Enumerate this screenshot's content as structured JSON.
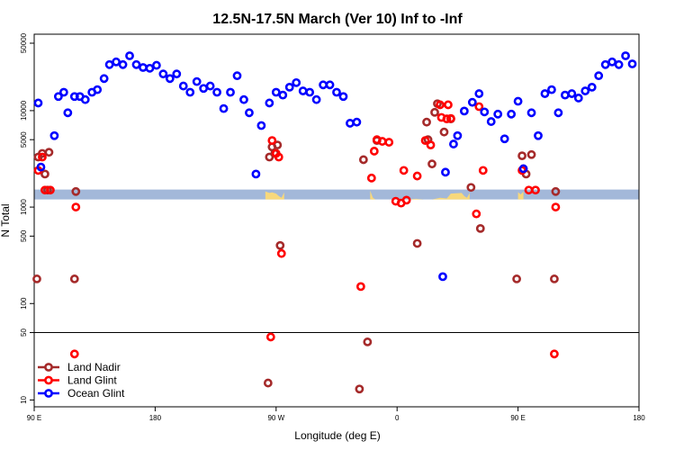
{
  "chart_data": {
    "type": "scatter",
    "title": "12.5N-17.5N March (Ver 10)   Inf to -Inf",
    "xlabel": "Longitude (deg E)",
    "ylabel": "N Total",
    "y_scale": "log",
    "xlim": [
      90,
      540
    ],
    "ylim": [
      8.5,
      62000
    ],
    "x_ticks": [
      {
        "value": 90,
        "label": "90 E"
      },
      {
        "value": 180,
        "label": "180"
      },
      {
        "value": 270,
        "label": "90 W"
      },
      {
        "value": 360,
        "label": "0"
      },
      {
        "value": 450,
        "label": "90 E"
      },
      {
        "value": 540,
        "label": "180"
      }
    ],
    "y_ticks": [
      {
        "value": 10,
        "label": "10"
      },
      {
        "value": 50,
        "label": "50"
      },
      {
        "value": 100,
        "label": "100"
      },
      {
        "value": 500,
        "label": "500"
      },
      {
        "value": 1000,
        "label": "1000"
      },
      {
        "value": 5000,
        "label": "5000"
      },
      {
        "value": 10000,
        "label": "10000"
      },
      {
        "value": 50000,
        "label": "50000"
      }
    ],
    "reference_line": 50,
    "land_band": {
      "y_low": 1200,
      "y_high": 1520,
      "color": "#a3b8d9",
      "land_color": "#f7d87c"
    },
    "land_profile": [
      [
        262,
        1450
      ],
      [
        265,
        1400
      ],
      [
        267,
        1420
      ],
      [
        270,
        1380
      ],
      [
        272,
        1300
      ],
      [
        274,
        1250
      ],
      [
        276,
        1420
      ],
      [
        340,
        1480
      ],
      [
        342,
        1250
      ],
      [
        344,
        1200
      ],
      [
        350,
        1200
      ],
      [
        356,
        1200
      ],
      [
        362,
        1200
      ],
      [
        368,
        1200
      ],
      [
        374,
        1220
      ],
      [
        380,
        1200
      ],
      [
        386,
        1200
      ],
      [
        392,
        1250
      ],
      [
        397,
        1230
      ],
      [
        400,
        1380
      ],
      [
        408,
        1400
      ],
      [
        410,
        1300
      ],
      [
        412,
        1250
      ],
      [
        414,
        1400
      ],
      [
        450,
        1430
      ],
      [
        452,
        1350
      ],
      [
        454,
        1450
      ]
    ],
    "legend_position": "bottom-left",
    "series": [
      {
        "name": "Land Nadir",
        "color": "#a52a2a",
        "points": [
          [
            92,
            180
          ],
          [
            93,
            3300
          ],
          [
            96,
            3600
          ],
          [
            98,
            2200
          ],
          [
            100,
            1500
          ],
          [
            101,
            3700
          ],
          [
            120,
            180
          ],
          [
            121,
            1450
          ],
          [
            264,
            15
          ],
          [
            265,
            3300
          ],
          [
            267,
            4200
          ],
          [
            269,
            3600
          ],
          [
            271,
            4400
          ],
          [
            273,
            400
          ],
          [
            332,
            13
          ],
          [
            335,
            3100
          ],
          [
            338,
            40
          ],
          [
            345,
            4900
          ],
          [
            375,
            420
          ],
          [
            382,
            7600
          ],
          [
            383,
            5000
          ],
          [
            386,
            2800
          ],
          [
            388,
            9600
          ],
          [
            390,
            11800
          ],
          [
            395,
            6000
          ],
          [
            400,
            8200
          ],
          [
            415,
            1600
          ],
          [
            422,
            600
          ],
          [
            449,
            180
          ],
          [
            453,
            3400
          ],
          [
            456,
            2200
          ],
          [
            460,
            3500
          ],
          [
            477,
            180
          ],
          [
            478,
            1450
          ]
        ]
      },
      {
        "name": "Land Glint",
        "color": "#ff0000",
        "points": [
          [
            93,
            2400
          ],
          [
            96,
            3300
          ],
          [
            98,
            1500
          ],
          [
            102,
            1500
          ],
          [
            120,
            30
          ],
          [
            121,
            1000
          ],
          [
            266,
            45
          ],
          [
            267,
            4900
          ],
          [
            270,
            3600
          ],
          [
            272,
            3300
          ],
          [
            274,
            330
          ],
          [
            333,
            150
          ],
          [
            341,
            2000
          ],
          [
            343,
            3800
          ],
          [
            345,
            5000
          ],
          [
            349,
            4800
          ],
          [
            354,
            4700
          ],
          [
            359,
            1150
          ],
          [
            363,
            1100
          ],
          [
            365,
            2400
          ],
          [
            367,
            1180
          ],
          [
            375,
            2100
          ],
          [
            381,
            4900
          ],
          [
            385,
            4400
          ],
          [
            392,
            11500
          ],
          [
            393,
            8500
          ],
          [
            397,
            8200
          ],
          [
            398,
            11500
          ],
          [
            400,
            8300
          ],
          [
            419,
            850
          ],
          [
            421,
            11000
          ],
          [
            424,
            2400
          ],
          [
            453,
            2400
          ],
          [
            458,
            1500
          ],
          [
            463,
            1500
          ],
          [
            477,
            30
          ],
          [
            478,
            1000
          ]
        ]
      },
      {
        "name": "Ocean Glint",
        "color": "#0000ff",
        "points": [
          [
            93,
            12000
          ],
          [
            95,
            2600
          ],
          [
            105,
            5500
          ],
          [
            108,
            14000
          ],
          [
            112,
            15500
          ],
          [
            115,
            9500
          ],
          [
            120,
            14000
          ],
          [
            124,
            14000
          ],
          [
            128,
            13000
          ],
          [
            133,
            15500
          ],
          [
            137,
            16500
          ],
          [
            142,
            21500
          ],
          [
            146,
            30000
          ],
          [
            151,
            32000
          ],
          [
            156,
            30000
          ],
          [
            161,
            37000
          ],
          [
            166,
            30000
          ],
          [
            171,
            28000
          ],
          [
            176,
            27500
          ],
          [
            181,
            29500
          ],
          [
            186,
            24000
          ],
          [
            191,
            21500
          ],
          [
            196,
            24000
          ],
          [
            201,
            18000
          ],
          [
            206,
            15500
          ],
          [
            211,
            20000
          ],
          [
            216,
            17000
          ],
          [
            221,
            18000
          ],
          [
            226,
            15500
          ],
          [
            231,
            10500
          ],
          [
            236,
            15500
          ],
          [
            241,
            23000
          ],
          [
            246,
            13000
          ],
          [
            250,
            9500
          ],
          [
            255,
            2200
          ],
          [
            259,
            7000
          ],
          [
            265,
            12000
          ],
          [
            270,
            15500
          ],
          [
            275,
            14500
          ],
          [
            280,
            17500
          ],
          [
            285,
            19500
          ],
          [
            290,
            16000
          ],
          [
            295,
            15500
          ],
          [
            300,
            13000
          ],
          [
            305,
            18500
          ],
          [
            310,
            18500
          ],
          [
            315,
            15500
          ],
          [
            320,
            14000
          ],
          [
            325,
            7400
          ],
          [
            330,
            7600
          ],
          [
            394,
            190
          ],
          [
            396,
            2300
          ],
          [
            402,
            4500
          ],
          [
            405,
            5500
          ],
          [
            410,
            9900
          ],
          [
            416,
            12200
          ],
          [
            421,
            15000
          ],
          [
            425,
            9700
          ],
          [
            430,
            7700
          ],
          [
            435,
            9200
          ],
          [
            440,
            5100
          ],
          [
            445,
            9200
          ],
          [
            450,
            12500
          ],
          [
            454,
            2500
          ],
          [
            460,
            9500
          ],
          [
            465,
            5500
          ],
          [
            470,
            15000
          ],
          [
            475,
            16500
          ],
          [
            480,
            9500
          ],
          [
            485,
            14500
          ],
          [
            490,
            15000
          ],
          [
            495,
            13500
          ],
          [
            500,
            16000
          ],
          [
            505,
            17500
          ],
          [
            510,
            23000
          ],
          [
            515,
            30000
          ],
          [
            520,
            32000
          ],
          [
            525,
            30000
          ],
          [
            530,
            37000
          ],
          [
            535,
            30500
          ]
        ]
      }
    ]
  }
}
